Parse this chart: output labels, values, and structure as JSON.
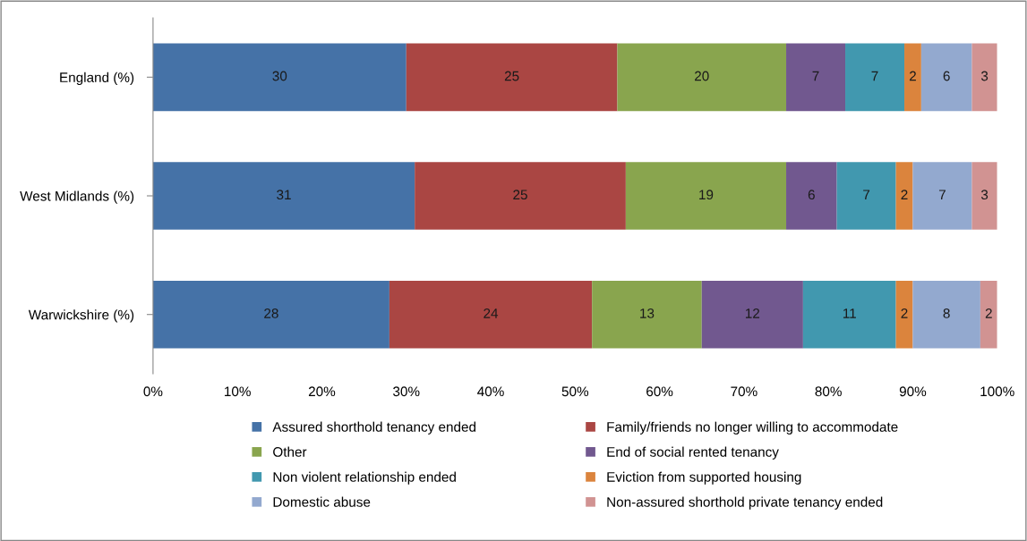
{
  "chart_data": {
    "type": "bar",
    "orientation": "horizontal",
    "stacked": true,
    "data_labels": true,
    "categories": [
      "England (%)",
      "West Midlands (%)",
      "Warwickshire (%)"
    ],
    "series": [
      {
        "name": "Assured shorthold tenancy ended",
        "color": "#4572a7",
        "values": [
          30,
          31,
          28
        ]
      },
      {
        "name": "Family/friends no longer willing to accommodate",
        "color": "#aa4643",
        "values": [
          25,
          25,
          24
        ]
      },
      {
        "name": "Other",
        "color": "#89a54e",
        "values": [
          20,
          19,
          13
        ]
      },
      {
        "name": "End of social rented tenancy",
        "color": "#71588f",
        "values": [
          7,
          6,
          12
        ]
      },
      {
        "name": "Non violent relationship ended",
        "color": "#4198af",
        "values": [
          7,
          7,
          11
        ]
      },
      {
        "name": "Eviction from supported housing",
        "color": "#db843d",
        "values": [
          2,
          2,
          2
        ]
      },
      {
        "name": "Domestic abuse",
        "color": "#93a9cf",
        "values": [
          6,
          7,
          8
        ]
      },
      {
        "name": "Non-assured shorthold private tenancy ended",
        "color": "#d19392",
        "values": [
          3,
          3,
          2
        ]
      }
    ],
    "xlim": [
      0,
      100
    ],
    "xticks": [
      {
        "value": 0,
        "label": "0%"
      },
      {
        "value": 10,
        "label": "10%"
      },
      {
        "value": 20,
        "label": "20%"
      },
      {
        "value": 30,
        "label": "30%"
      },
      {
        "value": 40,
        "label": "40%"
      },
      {
        "value": 50,
        "label": "50%"
      },
      {
        "value": 60,
        "label": "60%"
      },
      {
        "value": 70,
        "label": "70%"
      },
      {
        "value": 80,
        "label": "80%"
      },
      {
        "value": 90,
        "label": "90%"
      },
      {
        "value": 100,
        "label": "100%"
      }
    ],
    "grid": false,
    "legend": "bottom"
  }
}
